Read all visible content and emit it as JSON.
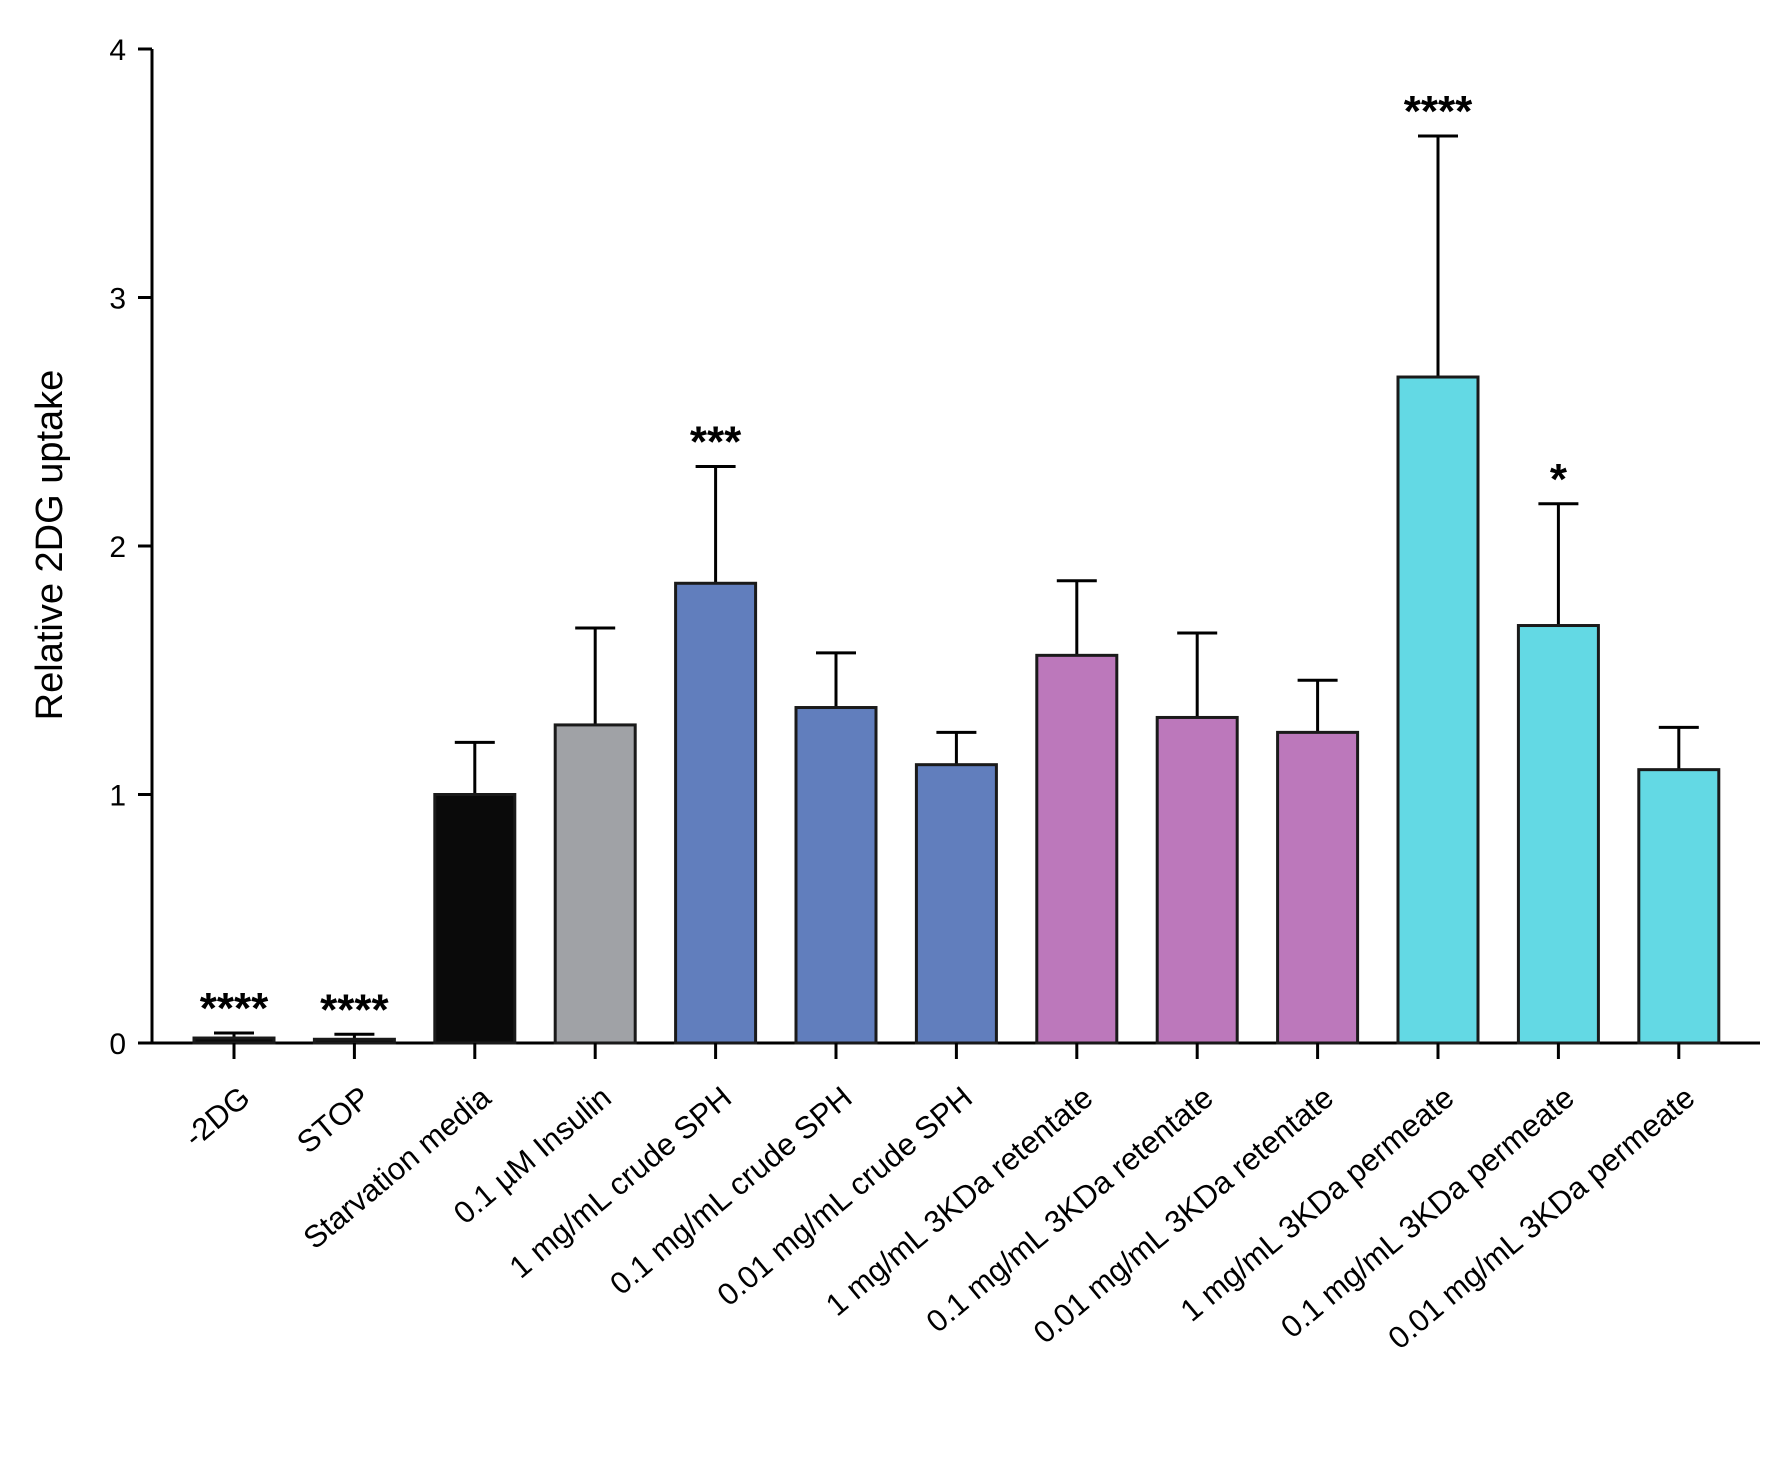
{
  "chart_data": {
    "type": "bar",
    "title": "",
    "xlabel": "",
    "ylabel": "Relative 2DG uptake",
    "ylim": [
      0,
      4
    ],
    "yticks": [
      0,
      1,
      2,
      3,
      4
    ],
    "grid": false,
    "categories": [
      "-2DG",
      "STOP",
      "Starvation media",
      "0.1 µM Insulin",
      "1 mg/mL crude SPH",
      "0.1 mg/mL crude SPH",
      "0.01 mg/mL crude SPH",
      "1 mg/mL 3KDa retentate",
      "0.1 mg/mL 3KDa retentate",
      "0.01 mg/mL 3KDa retentate",
      "1 mg/mL 3KDa permeate",
      "0.1 mg/mL 3KDa permeate",
      "0.01 mg/mL 3KDa permeate"
    ],
    "values": [
      0.02,
      0.015,
      1.0,
      1.28,
      1.85,
      1.35,
      1.12,
      1.56,
      1.31,
      1.25,
      2.68,
      1.68,
      1.1
    ],
    "errors": [
      0.02,
      0.02,
      0.21,
      0.39,
      0.47,
      0.22,
      0.13,
      0.3,
      0.34,
      0.21,
      0.97,
      0.49,
      0.17
    ],
    "colors": [
      "#0a0a0a",
      "#0a0a0a",
      "#0a0a0a",
      "#a0a2a6",
      "#617ebd",
      "#617ebd",
      "#617ebd",
      "#bc78bb",
      "#bc78bb",
      "#bc78bb",
      "#63d9e4",
      "#63d9e4",
      "#63d9e4"
    ],
    "significance": [
      "****",
      "****",
      "",
      "",
      "***",
      "",
      "",
      "",
      "",
      "",
      "****",
      "*",
      ""
    ]
  }
}
